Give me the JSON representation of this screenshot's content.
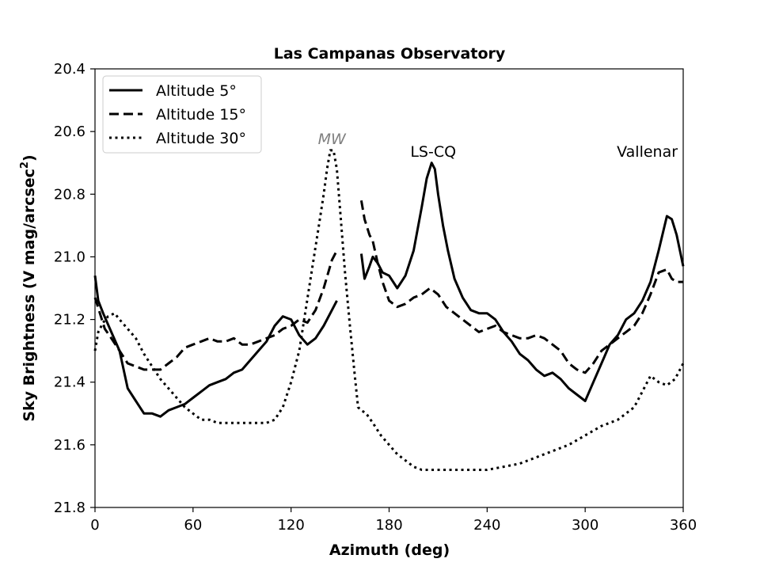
{
  "chart_data": {
    "type": "line",
    "title": "Las Campanas Observatory",
    "xlabel": "Azimuth (deg)",
    "ylabel": "Sky Brightness (V mag/arcsec",
    "ylabel_sup": "2",
    "ylabel_end": ")",
    "xlim": [
      0,
      360
    ],
    "ylim": [
      21.8,
      20.4
    ],
    "y_inverted": true,
    "xticks": [
      0,
      60,
      120,
      180,
      240,
      300,
      360
    ],
    "xtick_labels": [
      "0",
      "60",
      "120",
      "180",
      "240",
      "300",
      "360"
    ],
    "yticks": [
      20.4,
      20.6,
      20.8,
      21.0,
      21.2,
      21.4,
      21.6,
      21.8
    ],
    "ytick_labels": [
      "20.4",
      "20.6",
      "20.8",
      "21.0",
      "21.2",
      "21.4",
      "21.6",
      "21.8"
    ],
    "legend_position": "top-left",
    "annotations": [
      {
        "text": "MW",
        "x": 145,
        "y": 20.64,
        "style": "italic",
        "color": "#808080"
      },
      {
        "text": "LS-CQ",
        "x": 207,
        "y": 20.68,
        "style": "normal",
        "color": "#000000"
      },
      {
        "text": "Vallenar",
        "x": 338,
        "y": 20.68,
        "style": "normal",
        "color": "#000000"
      }
    ],
    "series": [
      {
        "name": "Altitude 5°",
        "style": "solid",
        "segments": [
          {
            "x": [
              0,
              2,
              5,
              10,
              15,
              20,
              25,
              30,
              35,
              40,
              45,
              50,
              55,
              60,
              65,
              70,
              75,
              80,
              85,
              90,
              95,
              100,
              105,
              110,
              115,
              120,
              125,
              130,
              135,
              140,
              145,
              148
            ],
            "y": [
              21.06,
              21.14,
              21.18,
              21.24,
              21.3,
              21.42,
              21.46,
              21.5,
              21.5,
              21.51,
              21.49,
              21.48,
              21.47,
              21.45,
              21.43,
              21.41,
              21.4,
              21.39,
              21.37,
              21.36,
              21.33,
              21.3,
              21.27,
              21.22,
              21.19,
              21.2,
              21.25,
              21.28,
              21.26,
              21.22,
              21.17,
              21.14
            ]
          },
          {
            "x": [
              163,
              165,
              168,
              170,
              173,
              176,
              180,
              185,
              190,
              195,
              200,
              203,
              206,
              208,
              210,
              213,
              216,
              220,
              225,
              230,
              235,
              240,
              245,
              250,
              255,
              260,
              265,
              270,
              275,
              280,
              285,
              290,
              295,
              300,
              305,
              310,
              315,
              320,
              325,
              330,
              335,
              340,
              345,
              350,
              353,
              356,
              360
            ],
            "y": [
              20.99,
              21.07,
              21.03,
              21.0,
              21.02,
              21.05,
              21.06,
              21.1,
              21.06,
              20.98,
              20.84,
              20.75,
              20.7,
              20.72,
              20.8,
              20.9,
              20.98,
              21.07,
              21.13,
              21.17,
              21.18,
              21.18,
              21.2,
              21.24,
              21.27,
              21.31,
              21.33,
              21.36,
              21.38,
              21.37,
              21.39,
              21.42,
              21.44,
              21.46,
              21.4,
              21.34,
              21.28,
              21.25,
              21.2,
              21.18,
              21.14,
              21.08,
              20.98,
              20.87,
              20.88,
              20.93,
              21.03
            ]
          }
        ]
      },
      {
        "name": "Altitude 15°",
        "style": "dashed",
        "segments": [
          {
            "x": [
              0,
              3,
              6,
              10,
              15,
              20,
              25,
              30,
              35,
              40,
              45,
              50,
              55,
              60,
              65,
              70,
              75,
              80,
              85,
              90,
              95,
              100,
              105,
              110,
              115,
              120,
              125,
              130,
              135,
              140,
              145,
              148
            ],
            "y": [
              21.13,
              21.18,
              21.23,
              21.26,
              21.3,
              21.34,
              21.35,
              21.36,
              21.36,
              21.36,
              21.34,
              21.32,
              21.29,
              21.28,
              21.27,
              21.26,
              21.27,
              21.27,
              21.26,
              21.28,
              21.28,
              21.27,
              21.26,
              21.25,
              21.23,
              21.22,
              21.2,
              21.21,
              21.17,
              21.1,
              21.01,
              20.98
            ]
          },
          {
            "x": [
              163,
              165,
              168,
              170,
              173,
              176,
              180,
              185,
              190,
              195,
              200,
              205,
              210,
              215,
              220,
              225,
              230,
              235,
              240,
              245,
              250,
              255,
              260,
              265,
              270,
              275,
              280,
              285,
              290,
              295,
              300,
              305,
              310,
              315,
              320,
              325,
              330,
              335,
              340,
              345,
              350,
              353,
              356,
              360
            ],
            "y": [
              20.82,
              20.88,
              20.93,
              20.95,
              21.02,
              21.08,
              21.14,
              21.16,
              21.15,
              21.13,
              21.12,
              21.1,
              21.12,
              21.16,
              21.18,
              21.2,
              21.22,
              21.24,
              21.23,
              21.22,
              21.24,
              21.25,
              21.26,
              21.26,
              21.25,
              21.26,
              21.28,
              21.3,
              21.34,
              21.36,
              21.37,
              21.34,
              21.3,
              21.28,
              21.26,
              21.24,
              21.22,
              21.18,
              21.12,
              21.05,
              21.04,
              21.07,
              21.08,
              21.08
            ]
          }
        ]
      },
      {
        "name": "Altitude 30°",
        "style": "dotted",
        "segments": [
          {
            "x": [
              0,
              2,
              5,
              8,
              12,
              15,
              20,
              25,
              30,
              35,
              40,
              45,
              50,
              55,
              60,
              65,
              70,
              75,
              80,
              85,
              90,
              95,
              100,
              105,
              110,
              115,
              120,
              125,
              128,
              131,
              134,
              137,
              140,
              142,
              144,
              146,
              148,
              150,
              153,
              156,
              159,
              161,
              163,
              166,
              170,
              175,
              180,
              185,
              190,
              195,
              200,
              210,
              220,
              230,
              240,
              250,
              260,
              270,
              280,
              290,
              300,
              310,
              320,
              330,
              340,
              345,
              350,
              355,
              358,
              360
            ],
            "y": [
              21.3,
              21.24,
              21.21,
              21.19,
              21.18,
              21.2,
              21.23,
              21.26,
              21.31,
              21.35,
              21.39,
              21.42,
              21.45,
              21.48,
              21.5,
              21.52,
              21.52,
              21.53,
              21.53,
              21.53,
              21.53,
              21.53,
              21.53,
              21.53,
              21.52,
              21.48,
              21.4,
              21.3,
              21.2,
              21.1,
              21.0,
              20.9,
              20.8,
              20.72,
              20.66,
              20.66,
              20.72,
              20.85,
              21.05,
              21.22,
              21.38,
              21.48,
              21.49,
              21.5,
              21.53,
              21.57,
              21.6,
              21.63,
              21.65,
              21.67,
              21.68,
              21.68,
              21.68,
              21.68,
              21.68,
              21.67,
              21.66,
              21.64,
              21.62,
              21.6,
              21.57,
              21.54,
              21.52,
              21.48,
              21.38,
              21.4,
              21.41,
              21.39,
              21.36,
              21.34
            ]
          }
        ]
      }
    ]
  }
}
